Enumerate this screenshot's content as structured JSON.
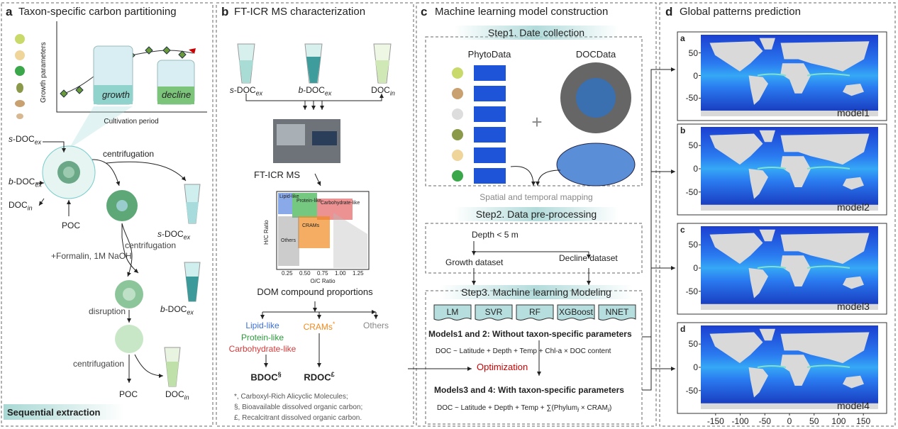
{
  "panel_a": {
    "letter": "a",
    "title": "Taxon-specific carbon partitioning",
    "y_label": "Growth parameters",
    "x_label": "Cultivation period",
    "phases": [
      "growth",
      "decline"
    ],
    "s_doc_ex": {
      "italic": "s",
      "text": "-DOC",
      "sub": "ex"
    },
    "b_doc_ex": {
      "italic": "b",
      "text": "-DOC",
      "sub": "ex"
    },
    "doc_in": {
      "text": "DOC",
      "sub": "in"
    },
    "poc": "POC",
    "steps": [
      "centrifugation",
      "centrifugation",
      "+Formalin, 1M NaOH",
      "disruption",
      "centrifugation"
    ],
    "out_s_doc_ex": {
      "italic": "s",
      "text": "-DOC",
      "sub": "ex"
    },
    "out_b_doc_ex": {
      "italic": "b",
      "text": "-DOC",
      "sub": "ex"
    },
    "out_poc": "POC",
    "out_doc_in": {
      "text": "DOC",
      "sub": "in"
    },
    "footer": "Sequential extraction"
  },
  "panel_b": {
    "letter": "b",
    "title": "FT-ICR MS characterization",
    "tubes": [
      {
        "italic": "s",
        "text": "-DOC",
        "sub": "ex"
      },
      {
        "italic": "b",
        "text": "-DOC",
        "sub": "ex"
      },
      {
        "text": "DOC",
        "sub": "in"
      }
    ],
    "instrument": "FT-ICR MS",
    "plot": {
      "y_label": "H/C Ratio",
      "x_label": "O/C Ratio",
      "xticks": [
        "0.25",
        "0.50",
        "0.75",
        "1.00",
        "1.25"
      ],
      "regions": [
        "Lipid-like",
        "Protein-like",
        "Carbohydrate-like",
        "CRAMs",
        "Others"
      ]
    },
    "caption": "DOM compound proportions",
    "classes": {
      "lipid": "Lipid-like",
      "protein": "Protein-like",
      "carbohydrate": "Carbohydrate-like",
      "crams": {
        "text": "CRAMs",
        "sup": "*"
      },
      "others": "Others"
    },
    "outputs": [
      {
        "text": "BDOC",
        "sup": "§"
      },
      {
        "text": "RDOC",
        "sup": "£"
      }
    ],
    "notes": [
      "*, Carboxyl-Rich Alicyclic Molecules;",
      "§, Bioavailable dissolved organic carbon;",
      "£, Recalcitrant dissolved organic carbon."
    ]
  },
  "panel_c": {
    "letter": "c",
    "title": "Machine learning model construction",
    "step1": "Step1. Date collection",
    "phyto": "PhytoData",
    "doc": "DOCData",
    "plus": "+",
    "mapping": "Spatial and temporal mapping",
    "step2": "Step2. Data pre-processing",
    "depth": "Depth < 5 m",
    "growth": "Growth dataset",
    "decline": "Decline dataset",
    "step3": "Step3. Machine learning Modeling",
    "models": [
      "LM",
      "SVR",
      "RF",
      "XGBoost",
      "NNET"
    ],
    "models12": "Models1 and 2: Without taxon-specific parameters",
    "formula1": "DOC ~ Latitude + Depth + Temp + Chl-a × DOC content",
    "optimization": "Optimization",
    "models34": "Models3 and 4: With taxon-specific parameters",
    "formula2": {
      "parts": [
        "DOC ~ Latitude + Depth + Temp + ∑(Phylum",
        "i",
        " × CRAM",
        "i",
        ")"
      ]
    }
  },
  "panel_d": {
    "letter": "d",
    "title": "Global patterns prediction",
    "maps": [
      {
        "letter": "a",
        "model": "model1"
      },
      {
        "letter": "b",
        "model": "model2"
      },
      {
        "letter": "c",
        "model": "model3"
      },
      {
        "letter": "d",
        "model": "model4"
      }
    ],
    "yticks": [
      50,
      0,
      -50
    ],
    "xticks": [
      -150,
      -100,
      -50,
      0,
      50,
      100,
      150
    ]
  }
}
